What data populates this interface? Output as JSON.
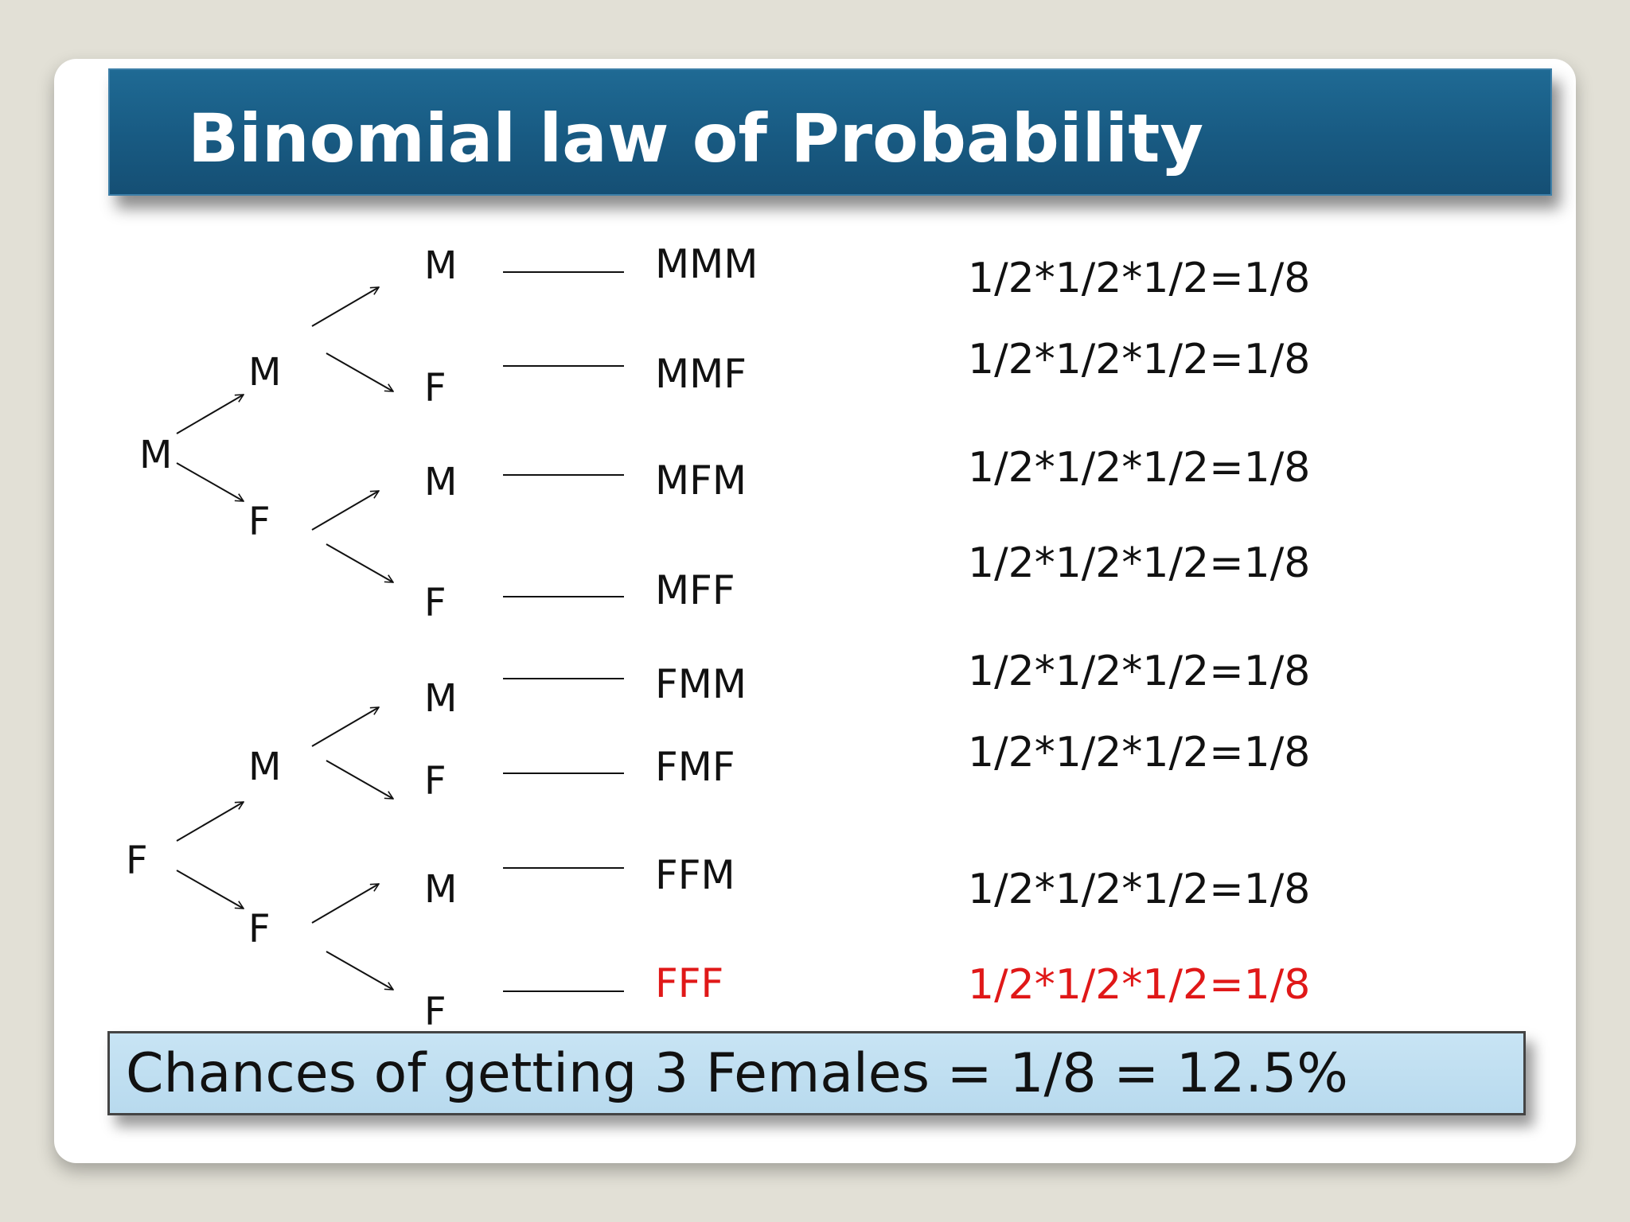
{
  "title": "Binomial law of Probability",
  "tree": {
    "root_m": "M",
    "root_f": "F",
    "m_branch": {
      "m": "M",
      "f": "F"
    },
    "f_branch": {
      "m": "M",
      "f": "F"
    },
    "leaves": [
      "M",
      "F",
      "M",
      "F",
      "M",
      "F",
      "M",
      "F"
    ]
  },
  "outcomes": [
    {
      "label": "MMM",
      "prob": "1/2*1/2*1/2=1/8",
      "highlight": false
    },
    {
      "label": "MMF",
      "prob": "1/2*1/2*1/2=1/8",
      "highlight": false
    },
    {
      "label": "MFM",
      "prob": "1/2*1/2*1/2=1/8",
      "highlight": false
    },
    {
      "label": "MFF",
      "prob": "1/2*1/2*1/2=1/8",
      "highlight": false
    },
    {
      "label": "FMM",
      "prob": "1/2*1/2*1/2=1/8",
      "highlight": false
    },
    {
      "label": "FMF",
      "prob": "1/2*1/2*1/2=1/8",
      "highlight": false
    },
    {
      "label": "FFM",
      "prob": "1/2*1/2*1/2=1/8",
      "highlight": false
    },
    {
      "label": "FFF",
      "prob": "1/2*1/2*1/2=1/8",
      "highlight": true
    }
  ],
  "result": "Chances of getting 3 Females = 1/8 = 12.5%",
  "colors": {
    "title_bar": "#1b5e88",
    "highlight": "#e01818",
    "result_box": "#c0def0"
  }
}
